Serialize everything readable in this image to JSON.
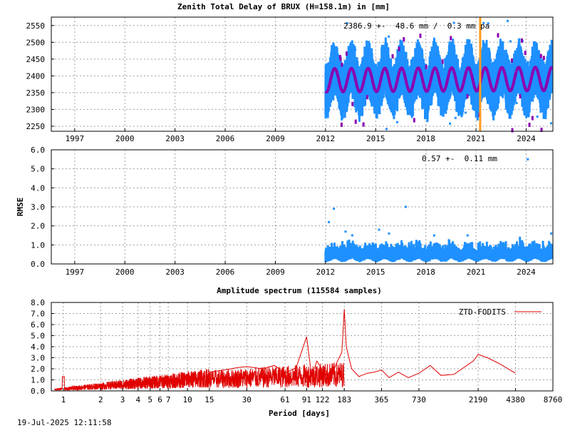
{
  "timestamp": "19-Jul-2025 12:11:58",
  "colors": {
    "ztd": "#1e90ff",
    "model": "#8b00b0",
    "marker": "#ff9a1f",
    "spectrum": "#e00000"
  },
  "chart_data": [
    {
      "type": "scatter",
      "title": "Zenith Total Delay of BRUX (H=158.1m) in [mm]",
      "annotation": "2386.9 +-  48.6 mm /  0.3 mm pa",
      "xlim": [
        1995.6,
        2025.6
      ],
      "ylim": [
        2235,
        2575
      ],
      "x_ticks": [
        1997,
        2000,
        2003,
        2006,
        2009,
        2012,
        2015,
        2018,
        2021,
        2024
      ],
      "y_ticks": [
        2250,
        2300,
        2350,
        2400,
        2450,
        2500,
        2550
      ],
      "data_start": 2012.0,
      "data_end": 2025.55,
      "mean": 2386.9,
      "std": 48.6,
      "trend_mm_per_year": 0.3,
      "seasonal_amplitude": 35,
      "vertical_marker_x": 2021.25,
      "grid": true
    },
    {
      "type": "scatter",
      "ylabel": "RMSE",
      "annotation": "0.57 +-  0.11 mm",
      "xlim": [
        1995.6,
        2025.6
      ],
      "ylim": [
        0.0,
        6.0
      ],
      "x_ticks": [
        1997,
        2000,
        2003,
        2006,
        2009,
        2012,
        2015,
        2018,
        2021,
        2024
      ],
      "y_ticks": [
        "0.0",
        "1.0",
        "2.0",
        "3.0",
        "4.0",
        "5.0",
        "6.0"
      ],
      "mean": 0.57,
      "std": 0.11,
      "outliers": [
        [
          2012.2,
          2.2
        ],
        [
          2012.5,
          2.9
        ],
        [
          2013.2,
          1.7
        ],
        [
          2013.6,
          1.5
        ],
        [
          2015.2,
          1.8
        ],
        [
          2015.8,
          1.6
        ],
        [
          2016.8,
          3.0
        ],
        [
          2018.5,
          1.5
        ],
        [
          2020.5,
          1.5
        ],
        [
          2024.1,
          5.5
        ],
        [
          2025.5,
          1.6
        ]
      ],
      "grid": true
    },
    {
      "type": "line",
      "title": "Amplitude spectrum (115584 samples)",
      "xlabel": "Period [days]",
      "xscale": "log",
      "xlim": [
        0.8,
        8760
      ],
      "ylim": [
        0.0,
        8.0
      ],
      "x_ticks": [
        "1",
        "2",
        "3",
        "4",
        "5",
        "6",
        "7",
        "10",
        "15",
        "30",
        "61",
        "91",
        "122",
        "183",
        "365",
        "730",
        "2190",
        "4380",
        "8760"
      ],
      "y_ticks": [
        "0.0",
        "1.0",
        "2.0",
        "3.0",
        "4.0",
        "5.0",
        "6.0",
        "7.0",
        "8.0"
      ],
      "legend": "ZTD-FODITS",
      "legend_position": "top-right",
      "series": [
        {
          "name": "ZTD-FODITS",
          "x": [
            15,
            20,
            25,
            30,
            40,
            50,
            61,
            75,
            91,
            100,
            110,
            122,
            140,
            160,
            175,
            183,
            190,
            210,
            240,
            280,
            320,
            365,
            420,
            500,
            600,
            730,
            900,
            1100,
            1400,
            2000,
            2190,
            2600,
            3200,
            4380
          ],
          "values": [
            1.7,
            1.9,
            2.1,
            2.2,
            2.0,
            2.3,
            1.6,
            2.1,
            4.9,
            1.3,
            2.7,
            1.9,
            1.0,
            2.6,
            3.5,
            7.4,
            4.0,
            2.0,
            1.3,
            1.6,
            1.7,
            1.9,
            1.2,
            1.7,
            1.2,
            1.6,
            2.3,
            1.4,
            1.5,
            2.7,
            3.3,
            3.0,
            2.5,
            1.6
          ]
        }
      ],
      "grid": true
    }
  ]
}
